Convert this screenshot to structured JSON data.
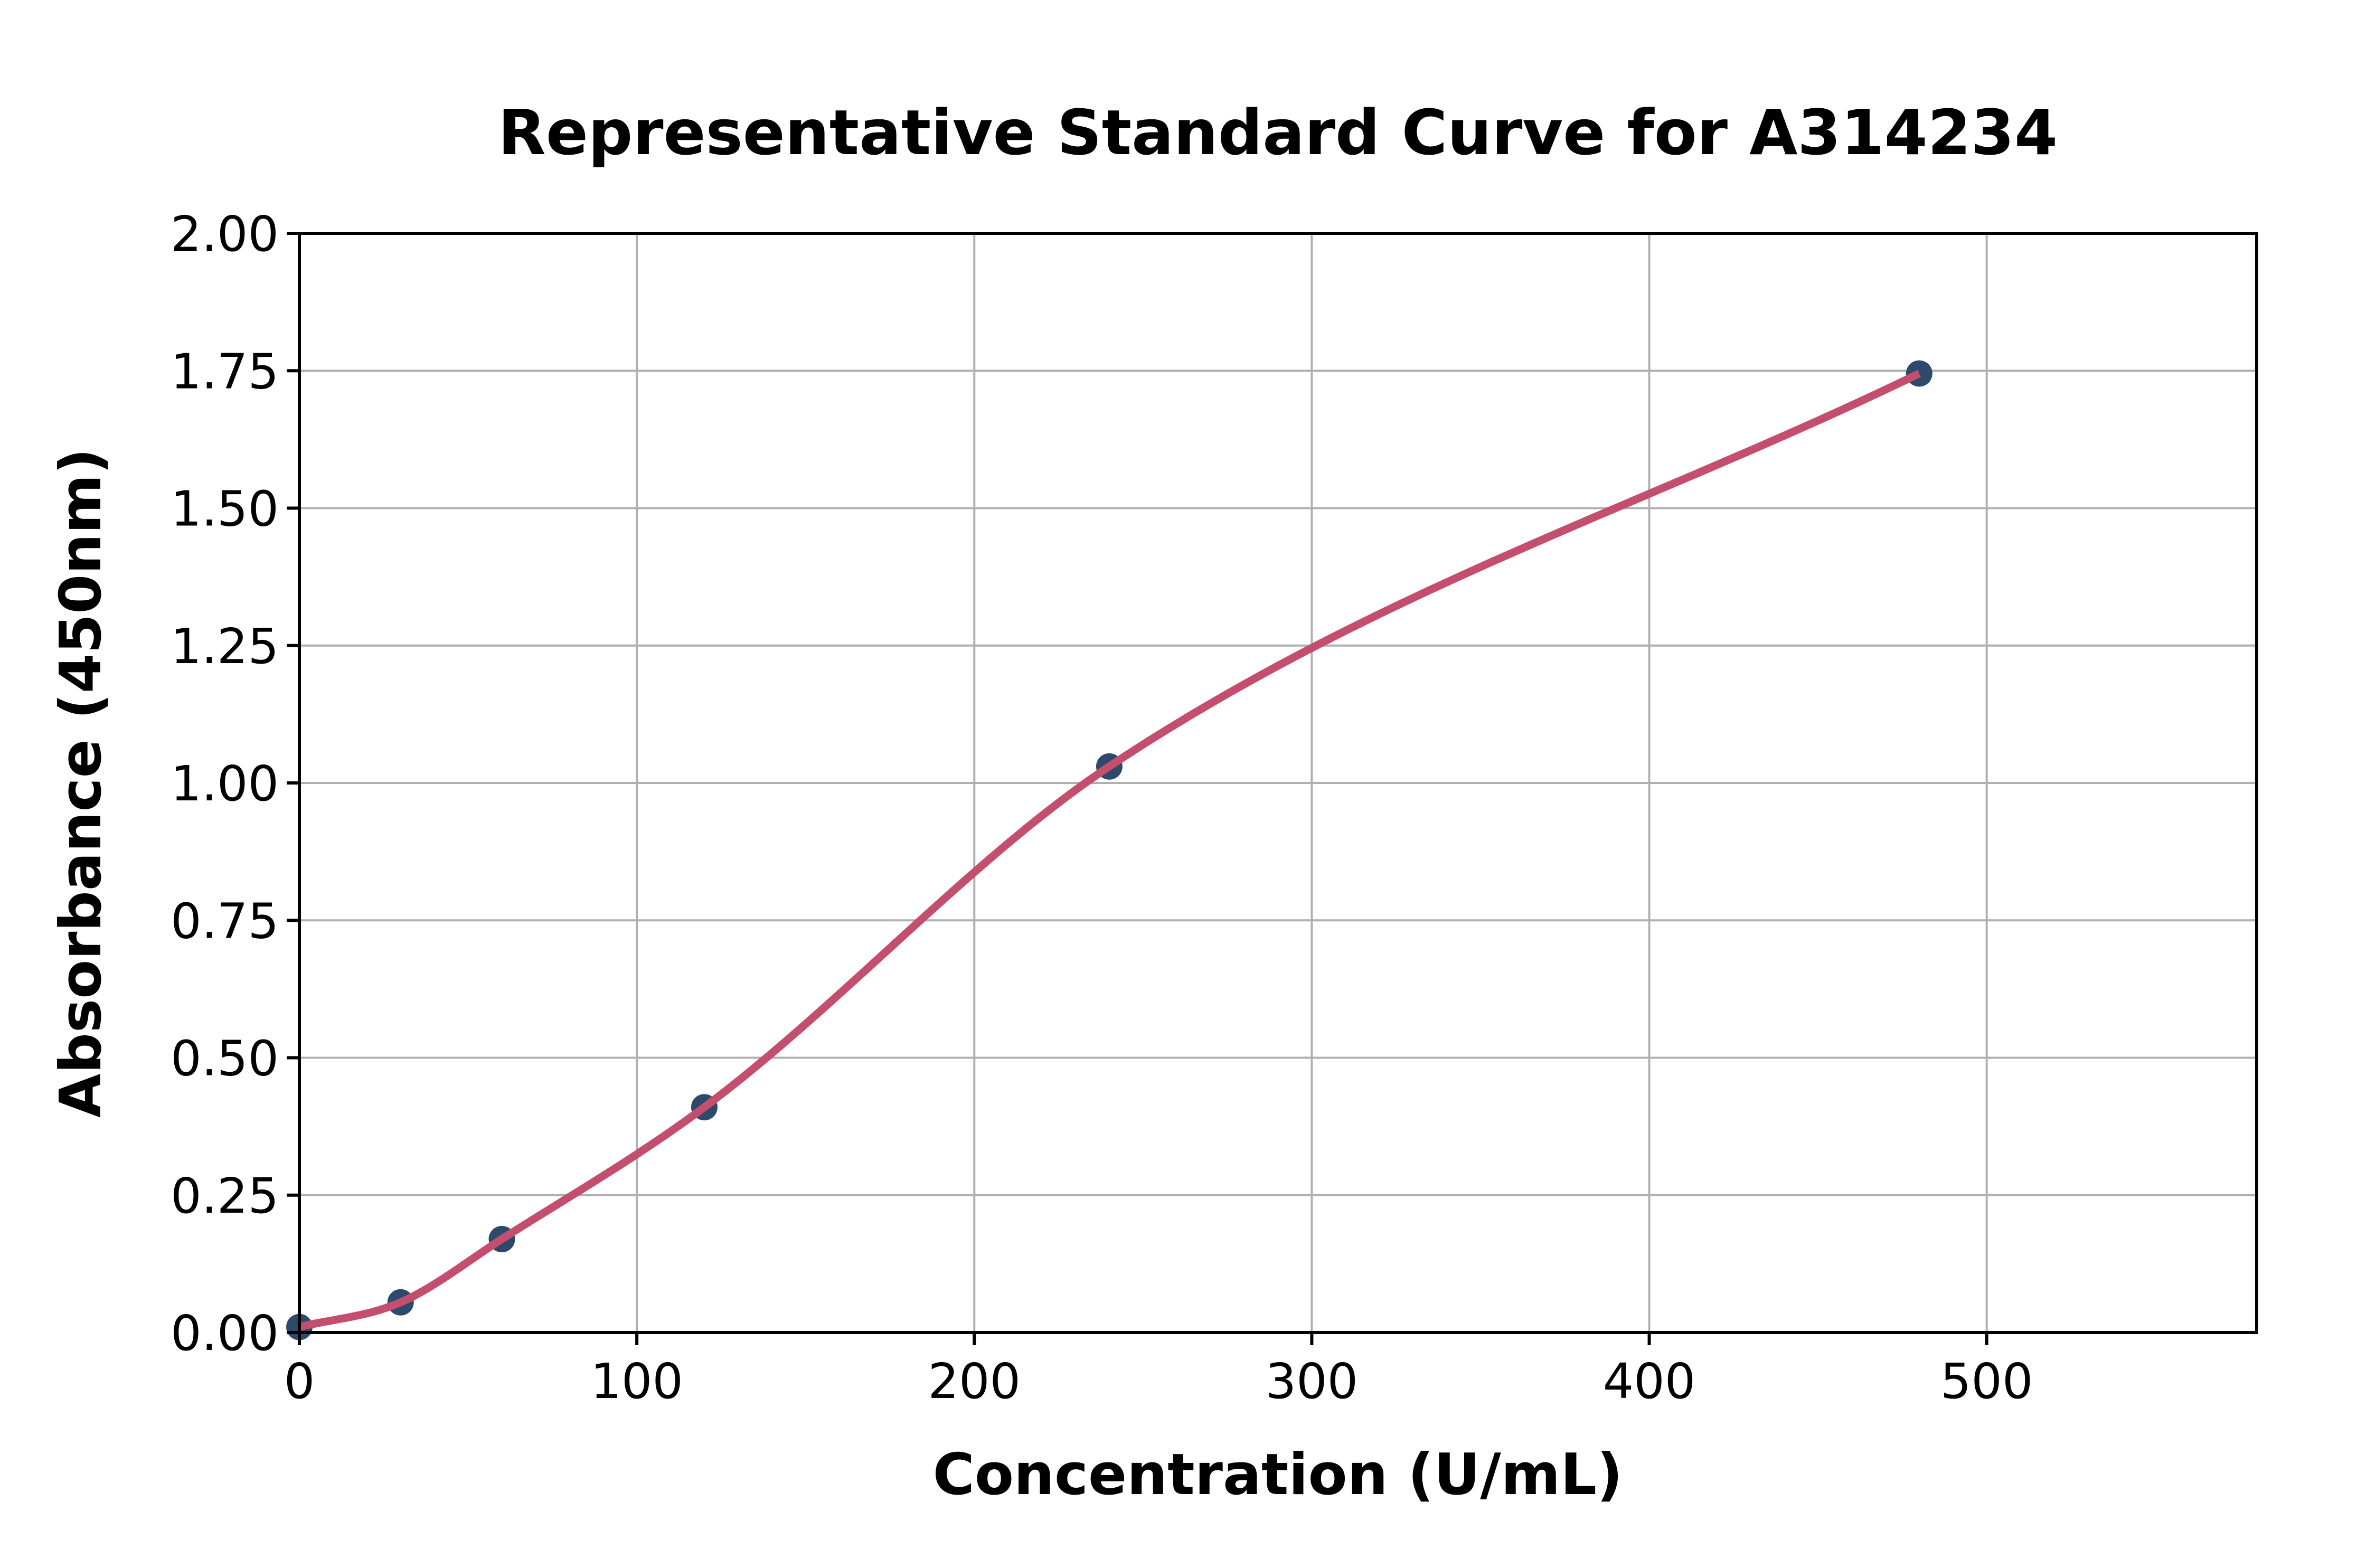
{
  "chart_data": {
    "type": "scatter",
    "title": "Representative Standard Curve for A314234",
    "xlabel": "Concentration (U/mL)",
    "ylabel": "Absorbance (450nm)",
    "xlim": [
      0,
      580
    ],
    "ylim": [
      0,
      2.0
    ],
    "xticks": [
      0,
      100,
      200,
      300,
      400,
      500
    ],
    "yticks": [
      0.0,
      0.25,
      0.5,
      0.75,
      1.0,
      1.25,
      1.5,
      1.75,
      2.0
    ],
    "ytick_decimals": 2,
    "grid": true,
    "legend": "none",
    "points": {
      "x": [
        0,
        30,
        60,
        120,
        240,
        480
      ],
      "y": [
        0.01,
        0.055,
        0.17,
        0.41,
        1.03,
        1.745
      ]
    },
    "curve": {
      "description": "smooth sigmoidal fit passing through the standard points",
      "x_start": 0,
      "x_end": 480
    },
    "colors": {
      "curve": "#c44e6d",
      "points": "#2e4a6b",
      "grid": "#b0b0b0",
      "frame": "#000000",
      "background": "#ffffff"
    }
  }
}
